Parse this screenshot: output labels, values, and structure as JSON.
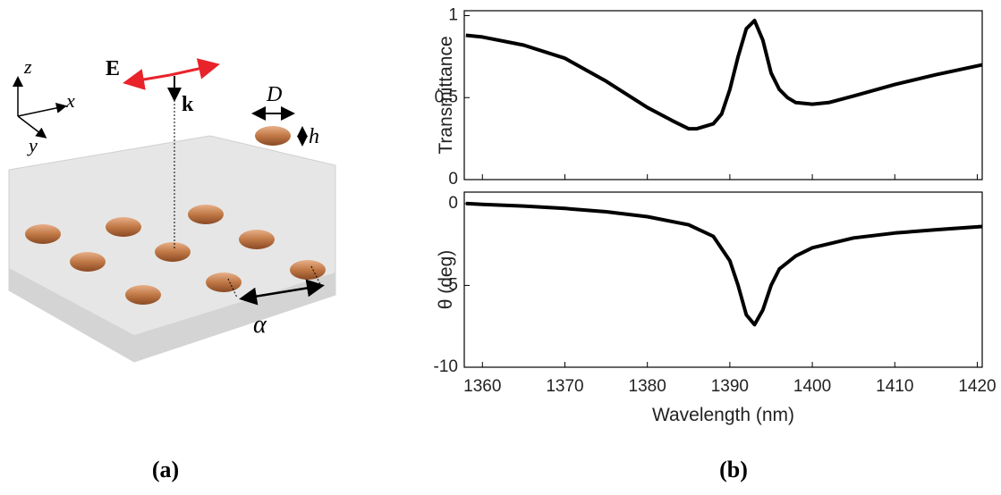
{
  "diagram": {
    "labels": {
      "E": "E",
      "k": "k",
      "D": "D",
      "h": "h",
      "alpha": "α",
      "z": "z",
      "x": "x",
      "y": "y"
    }
  },
  "panel_labels": [
    "(a)",
    "(b)"
  ],
  "chart_data": [
    {
      "type": "line",
      "y_label": "Transmittance",
      "color": "#000000",
      "x": [
        1358,
        1360,
        1365,
        1370,
        1375,
        1380,
        1383,
        1385,
        1386,
        1388,
        1389,
        1390,
        1391,
        1392,
        1393,
        1394,
        1395,
        1396,
        1397,
        1398,
        1400,
        1402,
        1405,
        1410,
        1415,
        1420.6
      ],
      "values": [
        0.88,
        0.87,
        0.82,
        0.74,
        0.6,
        0.44,
        0.36,
        0.31,
        0.31,
        0.34,
        0.4,
        0.55,
        0.75,
        0.92,
        0.97,
        0.85,
        0.65,
        0.55,
        0.5,
        0.47,
        0.46,
        0.47,
        0.51,
        0.58,
        0.64,
        0.7
      ],
      "xlim": [
        1357.8,
        1420.6
      ],
      "ylim": [
        0,
        1.03
      ],
      "xticks": [
        1360,
        1370,
        1380,
        1390,
        1400,
        1410,
        1420
      ],
      "yticks": [
        0,
        0.5,
        1
      ]
    },
    {
      "type": "line",
      "y_label": "θ (deg)",
      "x_label": "Wavelength (nm)",
      "color": "#000000",
      "x": [
        1358,
        1360,
        1365,
        1370,
        1375,
        1380,
        1385,
        1388,
        1390,
        1391,
        1392,
        1393,
        1394,
        1395,
        1396,
        1398,
        1400,
        1405,
        1410,
        1415,
        1420.6
      ],
      "values": [
        0,
        -0.05,
        -0.15,
        -0.3,
        -0.5,
        -0.8,
        -1.3,
        -2.0,
        -3.5,
        -5.0,
        -6.8,
        -7.4,
        -6.5,
        -5.0,
        -4.0,
        -3.2,
        -2.7,
        -2.1,
        -1.8,
        -1.6,
        -1.4
      ],
      "xlim": [
        1357.8,
        1420.6
      ],
      "ylim": [
        -10,
        0.7
      ],
      "xticks": [
        1360,
        1370,
        1380,
        1390,
        1400,
        1410,
        1420
      ],
      "yticks": [
        -10,
        -5,
        0
      ]
    }
  ]
}
